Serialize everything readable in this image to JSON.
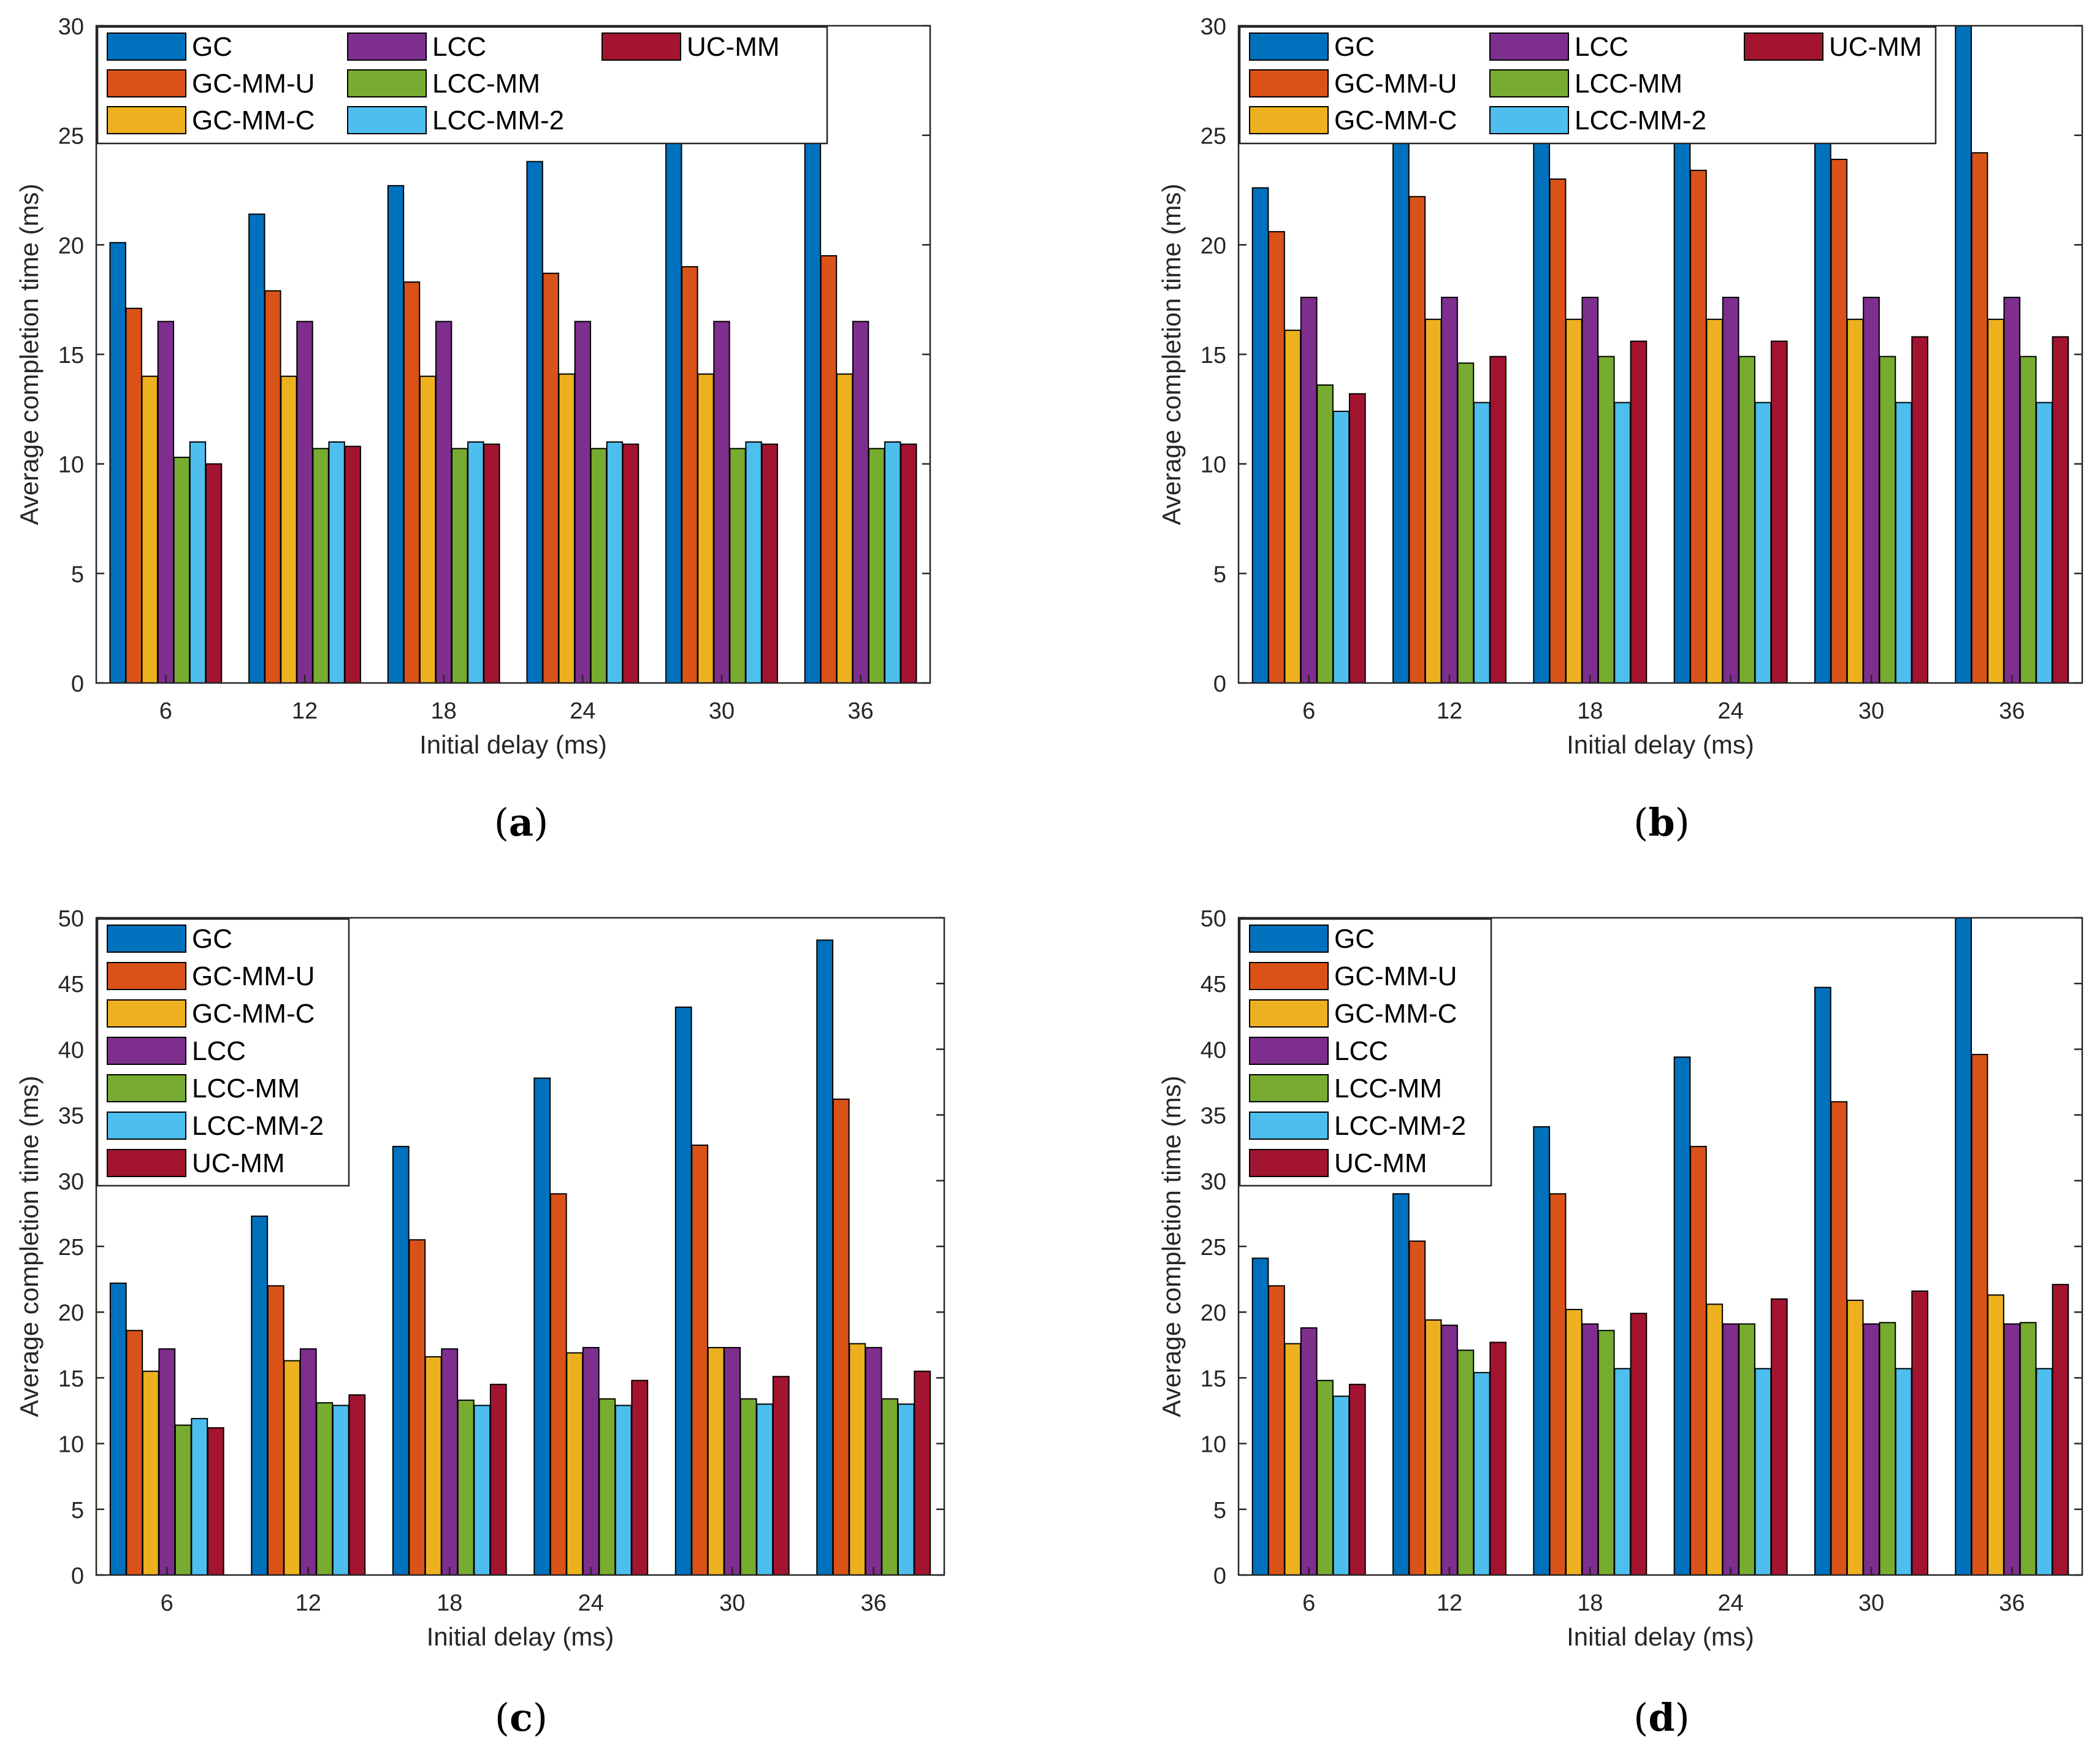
{
  "colors": {
    "GC": "#0072BD",
    "GC-MM-U": "#D95319",
    "GC-MM-C": "#EDB120",
    "LCC": "#7E2F8E",
    "LCC-MM": "#77AC30",
    "LCC-MM-2": "#4DBEEE",
    "UC-MM": "#A2142F"
  },
  "chart_data": [
    {
      "id": "a",
      "caption_letter": "a",
      "type": "bar",
      "title": "",
      "xlabel": "Initial delay (ms)",
      "ylabel": "Average completion time (ms)",
      "categories": [
        "6",
        "12",
        "18",
        "24",
        "30",
        "36"
      ],
      "ylim": [
        0,
        30
      ],
      "yticks": [
        "0",
        "5",
        "10",
        "15",
        "20",
        "25",
        "30"
      ],
      "legend_position": "top",
      "legend_layout": "three-columns",
      "series": [
        {
          "name": "GC",
          "values": [
            20.1,
            21.4,
            22.7,
            23.8,
            25.0,
            26.2
          ]
        },
        {
          "name": "GC-MM-U",
          "values": [
            17.1,
            17.9,
            18.3,
            18.7,
            19.0,
            19.5
          ]
        },
        {
          "name": "GC-MM-C",
          "values": [
            14.0,
            14.0,
            14.0,
            14.1,
            14.1,
            14.1
          ]
        },
        {
          "name": "LCC",
          "values": [
            16.5,
            16.5,
            16.5,
            16.5,
            16.5,
            16.5
          ]
        },
        {
          "name": "LCC-MM",
          "values": [
            10.3,
            10.7,
            10.7,
            10.7,
            10.7,
            10.7
          ]
        },
        {
          "name": "LCC-MM-2",
          "values": [
            11.0,
            11.0,
            11.0,
            11.0,
            11.0,
            11.0
          ]
        },
        {
          "name": "UC-MM",
          "values": [
            10.0,
            10.8,
            10.9,
            10.9,
            10.9,
            10.9
          ]
        }
      ]
    },
    {
      "id": "b",
      "caption_letter": "b",
      "type": "bar",
      "title": "",
      "xlabel": "Initial delay (ms)",
      "ylabel": "Average completion time (ms)",
      "categories": [
        "6",
        "12",
        "18",
        "24",
        "30",
        "36"
      ],
      "ylim": [
        0,
        30
      ],
      "yticks": [
        "0",
        "5",
        "10",
        "15",
        "20",
        "25",
        "30"
      ],
      "legend_position": "top",
      "legend_layout": "three-columns",
      "series": [
        {
          "name": "GC",
          "values": [
            22.6,
            25.0,
            25.0,
            25.0,
            25.0,
            30.0
          ]
        },
        {
          "name": "GC-MM-U",
          "values": [
            20.6,
            22.2,
            23.0,
            23.4,
            23.9,
            24.2
          ]
        },
        {
          "name": "GC-MM-C",
          "values": [
            16.1,
            16.6,
            16.6,
            16.6,
            16.6,
            16.6
          ]
        },
        {
          "name": "LCC",
          "values": [
            17.6,
            17.6,
            17.6,
            17.6,
            17.6,
            17.6
          ]
        },
        {
          "name": "LCC-MM",
          "values": [
            13.6,
            14.6,
            14.9,
            14.9,
            14.9,
            14.9
          ]
        },
        {
          "name": "LCC-MM-2",
          "values": [
            12.4,
            12.8,
            12.8,
            12.8,
            12.8,
            12.8
          ]
        },
        {
          "name": "UC-MM",
          "values": [
            13.2,
            14.9,
            15.6,
            15.6,
            15.8,
            15.8
          ]
        }
      ]
    },
    {
      "id": "c",
      "caption_letter": "c",
      "type": "bar",
      "title": "",
      "xlabel": "Initial delay (ms)",
      "ylabel": "Average completion time (ms)",
      "categories": [
        "6",
        "12",
        "18",
        "24",
        "30",
        "36"
      ],
      "ylim": [
        0,
        50
      ],
      "yticks": [
        "0",
        "5",
        "10",
        "15",
        "20",
        "25",
        "30",
        "35",
        "40",
        "45",
        "50"
      ],
      "legend_position": "top-left",
      "legend_layout": "single-column",
      "series": [
        {
          "name": "GC",
          "values": [
            22.2,
            27.3,
            32.6,
            37.8,
            43.2,
            48.3
          ]
        },
        {
          "name": "GC-MM-U",
          "values": [
            18.6,
            22.0,
            25.5,
            29.0,
            32.7,
            36.2
          ]
        },
        {
          "name": "GC-MM-C",
          "values": [
            15.5,
            16.3,
            16.6,
            16.9,
            17.3,
            17.6
          ]
        },
        {
          "name": "LCC",
          "values": [
            17.2,
            17.2,
            17.2,
            17.3,
            17.3,
            17.3
          ]
        },
        {
          "name": "LCC-MM",
          "values": [
            11.4,
            13.1,
            13.3,
            13.4,
            13.4,
            13.4
          ]
        },
        {
          "name": "LCC-MM-2",
          "values": [
            11.9,
            12.9,
            12.9,
            12.9,
            13.0,
            13.0
          ]
        },
        {
          "name": "UC-MM",
          "values": [
            11.2,
            13.7,
            14.5,
            14.8,
            15.1,
            15.5
          ]
        }
      ]
    },
    {
      "id": "d",
      "caption_letter": "d",
      "type": "bar",
      "title": "",
      "xlabel": "Initial delay (ms)",
      "ylabel": "Average completion time (ms)",
      "categories": [
        "6",
        "12",
        "18",
        "24",
        "30",
        "36"
      ],
      "ylim": [
        0,
        50
      ],
      "yticks": [
        "0",
        "5",
        "10",
        "15",
        "20",
        "25",
        "30",
        "35",
        "40",
        "45",
        "50"
      ],
      "legend_position": "top-left",
      "legend_layout": "single-column",
      "series": [
        {
          "name": "GC",
          "values": [
            24.1,
            29.0,
            34.1,
            39.4,
            44.7,
            50.0
          ]
        },
        {
          "name": "GC-MM-U",
          "values": [
            22.0,
            25.4,
            29.0,
            32.6,
            36.0,
            39.6
          ]
        },
        {
          "name": "GC-MM-C",
          "values": [
            17.6,
            19.4,
            20.2,
            20.6,
            20.9,
            21.3
          ]
        },
        {
          "name": "LCC",
          "values": [
            18.8,
            19.0,
            19.1,
            19.1,
            19.1,
            19.1
          ]
        },
        {
          "name": "LCC-MM",
          "values": [
            14.8,
            17.1,
            18.6,
            19.1,
            19.2,
            19.2
          ]
        },
        {
          "name": "LCC-MM-2",
          "values": [
            13.6,
            15.4,
            15.7,
            15.7,
            15.7,
            15.7
          ]
        },
        {
          "name": "UC-MM",
          "values": [
            14.5,
            17.7,
            19.9,
            21.0,
            21.6,
            22.1
          ]
        }
      ]
    }
  ]
}
